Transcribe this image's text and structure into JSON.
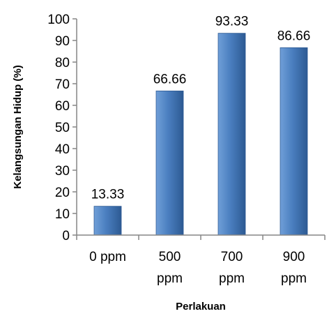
{
  "chart_data": {
    "type": "bar",
    "categories": [
      "0 ppm",
      "500 ppm",
      "700 ppm",
      "900 ppm"
    ],
    "category_lines": [
      [
        "0 ppm"
      ],
      [
        "500",
        "ppm"
      ],
      [
        "700",
        "ppm"
      ],
      [
        "900",
        "ppm"
      ]
    ],
    "values": [
      13.33,
      66.66,
      93.33,
      86.66
    ],
    "data_labels": [
      "13.33",
      "66.66",
      "93.33",
      "86.66"
    ],
    "xlabel": "Perlakuan",
    "ylabel": "Kelangsungan Hidup (%)",
    "ylim": [
      0,
      100
    ],
    "yticks": [
      0,
      10,
      20,
      30,
      40,
      50,
      60,
      70,
      80,
      90,
      100
    ],
    "grid": false,
    "legend": "none",
    "colors": {
      "bar_light": "#6f9fd8",
      "bar_mid": "#4a7ebf",
      "bar_dark": "#2d5a93",
      "axis": "#868686"
    }
  }
}
